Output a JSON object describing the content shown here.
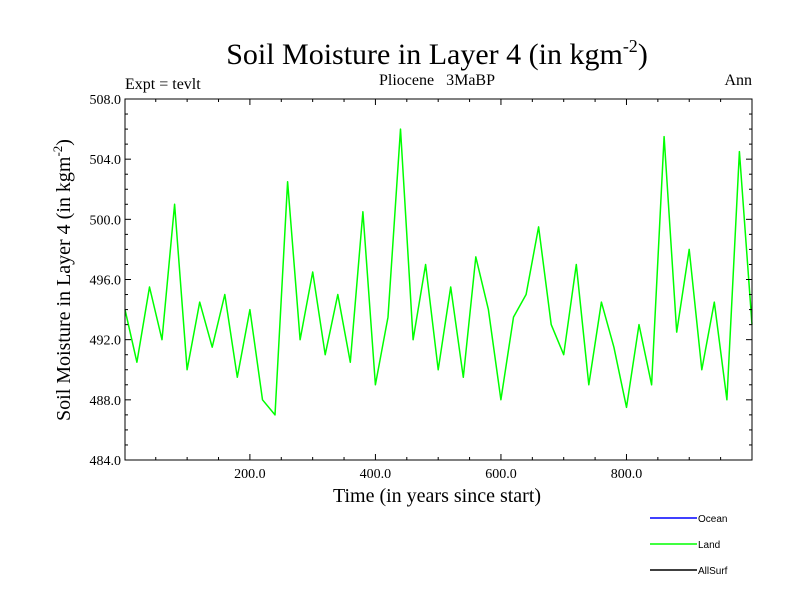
{
  "chart_data": {
    "type": "line",
    "title": "Soil Moisture in Layer 4 (in kgm",
    "title_sup": "-2",
    "title_end": ")",
    "subtitle_left": "Expt = tevlt",
    "subtitle_center": "Pliocene   3MaBP",
    "subtitle_right": "Ann",
    "xlabel": "Time (in years since start)",
    "ylabel": "Soil Moisture in Layer 4 (in kgm",
    "ylabel_sup": "-2",
    "ylabel_end": ")",
    "xlim": [
      1,
      1000
    ],
    "ylim": [
      484.0,
      508.0
    ],
    "xticks": [
      200,
      400,
      600,
      800
    ],
    "xtick_labels": [
      "200.0",
      "400.0",
      "600.0",
      "800.0"
    ],
    "yticks": [
      484,
      488,
      492,
      496,
      500,
      504,
      508
    ],
    "ytick_labels": [
      "484.0",
      "488.0",
      "492.0",
      "496.0",
      "500.0",
      "504.0",
      "508.0"
    ],
    "legend": [
      {
        "name": "Ocean",
        "color": "#0000ff"
      },
      {
        "name": "Land",
        "color": "#00ff00"
      },
      {
        "name": "AllSurf",
        "color": "#000000"
      }
    ],
    "series": [
      {
        "name": "Land",
        "color": "#00ff00",
        "x": [
          1,
          20,
          40,
          60,
          80,
          100,
          120,
          140,
          160,
          180,
          200,
          220,
          240,
          260,
          280,
          300,
          320,
          340,
          360,
          380,
          400,
          420,
          440,
          460,
          480,
          500,
          520,
          540,
          560,
          580,
          600,
          620,
          640,
          660,
          680,
          700,
          720,
          740,
          760,
          780,
          800,
          820,
          840,
          860,
          880,
          900,
          920,
          940,
          960,
          980,
          1000
        ],
        "values": [
          494.0,
          490.5,
          495.5,
          492.0,
          501.0,
          490.0,
          494.5,
          491.5,
          495.0,
          489.5,
          494.0,
          488.0,
          487.0,
          502.5,
          492.0,
          496.5,
          491.0,
          495.0,
          490.5,
          500.5,
          489.0,
          493.5,
          506.0,
          492.0,
          497.0,
          490.0,
          495.5,
          489.5,
          497.5,
          494.0,
          488.0,
          493.5,
          495.0,
          499.5,
          493.0,
          491.0,
          497.0,
          489.0,
          494.5,
          491.5,
          487.5,
          493.0,
          489.0,
          505.5,
          492.5,
          498.0,
          490.0,
          494.5,
          488.0,
          504.5,
          493.0
        ]
      }
    ]
  }
}
